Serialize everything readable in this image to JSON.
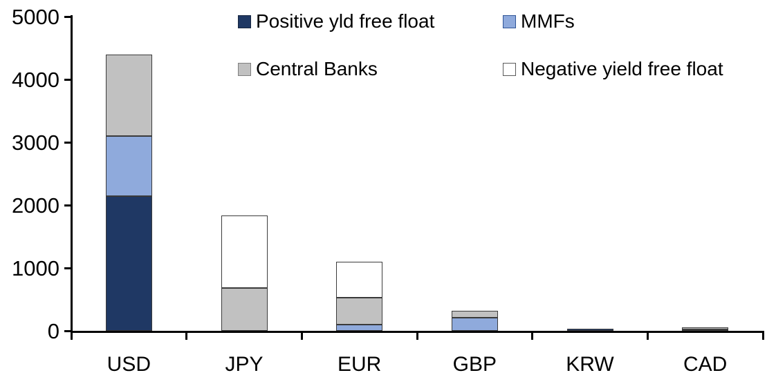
{
  "chart_data": {
    "type": "bar",
    "stacked": true,
    "title": "",
    "categories": [
      "USD",
      "JPY",
      "EUR",
      "GBP",
      "KRW",
      "CAD"
    ],
    "series": [
      {
        "name": "Positive yld free float",
        "color": "#1F3864",
        "swatch_border": "#17263F",
        "values": [
          2150,
          0,
          0,
          0,
          40,
          30
        ]
      },
      {
        "name": "MMFs",
        "color": "#8FAADC",
        "swatch_border": "#2F5496",
        "values": [
          950,
          0,
          100,
          210,
          0,
          0
        ]
      },
      {
        "name": "Central Banks",
        "color": "#C1C1C1",
        "swatch_border": "#7F7F7F",
        "values": [
          1300,
          690,
          430,
          110,
          0,
          30
        ]
      },
      {
        "name": "Negative yield free float",
        "color": "#FFFFFF",
        "swatch_border": "#595959",
        "values": [
          0,
          1150,
          570,
          0,
          0,
          0
        ]
      }
    ],
    "xlabel": "",
    "ylabel": "",
    "ylim": [
      0,
      5000
    ],
    "yticks": [
      0,
      1000,
      2000,
      3000,
      4000,
      5000
    ],
    "grid": false,
    "legend_position": "top-two-column",
    "legend_rows": [
      [
        "Positive yld free float",
        "MMFs"
      ],
      [
        "Central Banks",
        "Negative yield free float"
      ]
    ],
    "axis_color": "#000000",
    "segment_border_color": "#3A3A3A",
    "background_color": "#FFFFFF"
  }
}
